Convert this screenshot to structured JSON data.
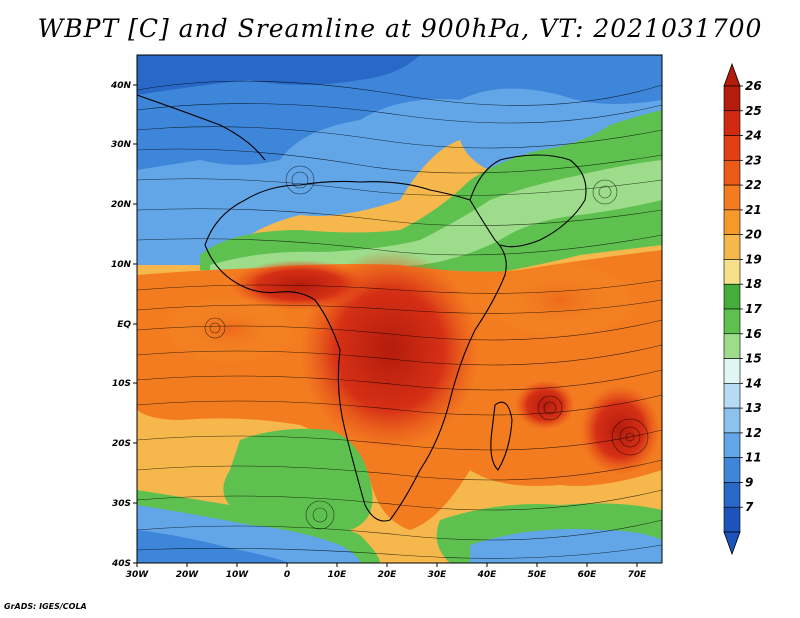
{
  "title": "WBPT [C] and Sreamline at 900hPa, VT: 2021031700",
  "credit": "GrADS: IGES/COLA",
  "map": {
    "lon_labels": [
      "30W",
      "20W",
      "10W",
      "0",
      "10E",
      "20E",
      "30E",
      "40E",
      "50E",
      "60E",
      "70E"
    ],
    "lat_labels": [
      "40N",
      "30N",
      "20N",
      "10N",
      "EQ",
      "10S",
      "20S",
      "30S",
      "40S"
    ],
    "lon_range": [
      -30,
      75
    ],
    "lat_range": [
      -40,
      45
    ]
  },
  "colorbar": {
    "labels": [
      "26",
      "25",
      "24",
      "23",
      "22",
      "21",
      "20",
      "19",
      "18",
      "17",
      "16",
      "15",
      "14",
      "13",
      "12",
      "11",
      "9",
      "7"
    ],
    "colors": [
      "#b41c0c",
      "#d02a12",
      "#e23f16",
      "#ec5a1a",
      "#f37c20",
      "#f59a2a",
      "#f6b84c",
      "#f7e08a",
      "#45ae3a",
      "#5ec04e",
      "#9ddc8a",
      "#e0f6f2",
      "#b6dcf4",
      "#8cc2ee",
      "#62a6e8",
      "#3e86da",
      "#2a68c8",
      "#1c54bc"
    ]
  }
}
